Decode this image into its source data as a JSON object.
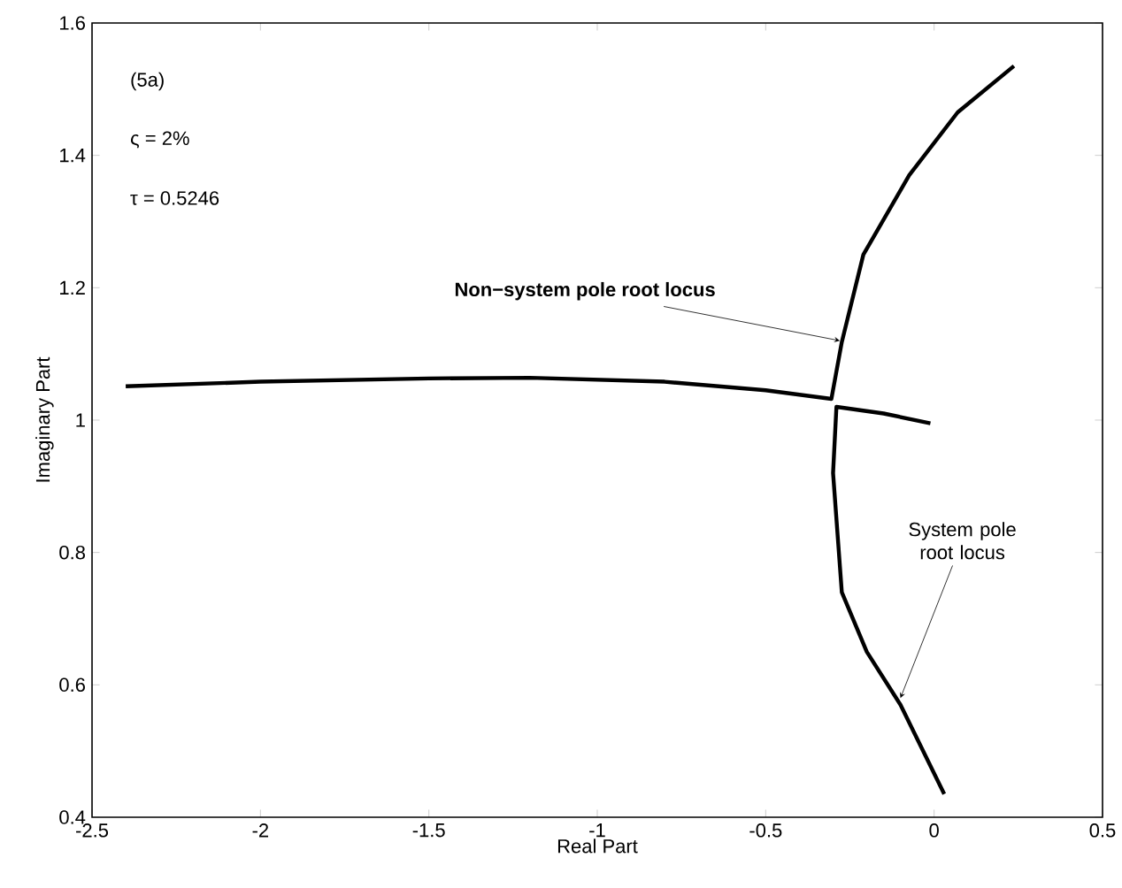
{
  "chart_data": {
    "type": "line",
    "xlabel": "Real Part",
    "ylabel": "Imaginary Part",
    "xlim": [
      -2.5,
      0.5
    ],
    "ylim": [
      0.4,
      1.6
    ],
    "xticks": [
      -2.5,
      -2,
      -1.5,
      -1,
      -0.5,
      0,
      0.5
    ],
    "yticks": [
      0.4,
      0.6,
      0.8,
      1,
      1.2,
      1.4,
      1.6
    ],
    "series": [
      {
        "color": "#000000",
        "x": [
          -2.4,
          -2.0,
          -1.5,
          -1.2,
          -0.8,
          -0.5,
          -0.305,
          -0.274,
          -0.21,
          -0.074,
          0.07,
          0.237
        ],
        "values": [
          1.051,
          1.058,
          1.063,
          1.064,
          1.058,
          1.045,
          1.032,
          1.118,
          1.25,
          1.37,
          1.465,
          1.535
        ]
      },
      {
        "color": "#000000",
        "x": [
          -0.011,
          -0.15,
          -0.29,
          -0.3,
          -0.274,
          -0.2,
          -0.1,
          0.03
        ],
        "values": [
          0.995,
          1.01,
          1.02,
          0.92,
          0.74,
          0.65,
          0.57,
          0.435
        ]
      }
    ],
    "annotations": [
      "(5a)",
      "ς = 2%",
      "τ = 0.5246",
      {
        "text": "Non−system pole root locus",
        "x": -0.28,
        "y": 1.12
      },
      {
        "text": "System pole root locus",
        "x": -0.1,
        "y": 0.58
      }
    ]
  }
}
